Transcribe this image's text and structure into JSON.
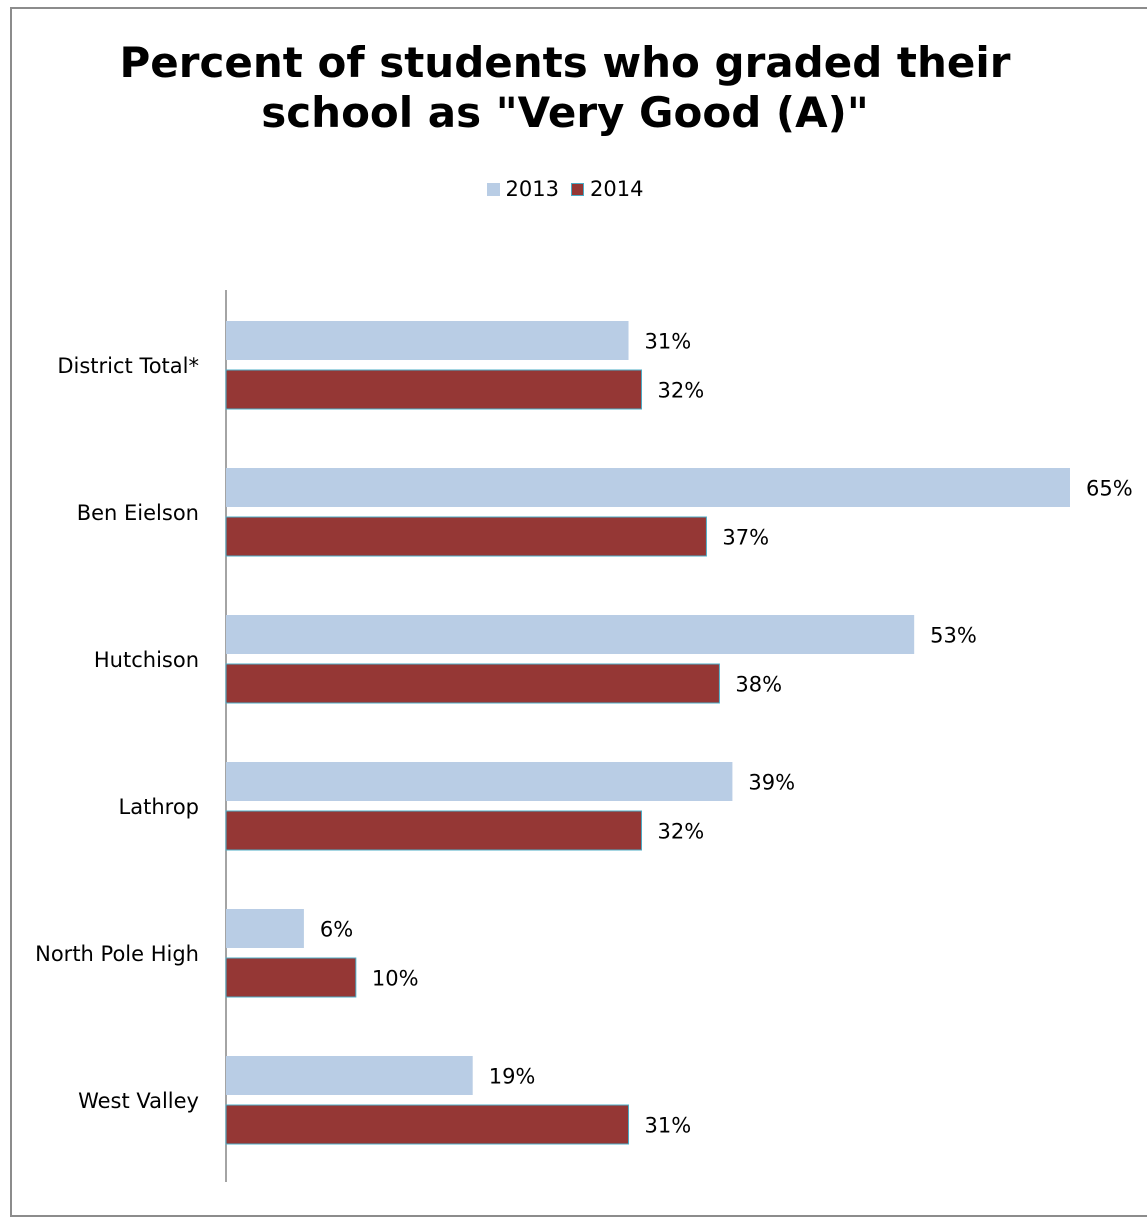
{
  "chart_data": {
    "type": "bar",
    "orientation": "horizontal",
    "title": "Percent of students who graded their\nschool as \"Very Good (A)\"",
    "categories": [
      "District Total*",
      "Ben Eielson",
      "Hutchison",
      "Lathrop",
      "North Pole High",
      "West Valley"
    ],
    "series": [
      {
        "name": "2013",
        "values": [
          31,
          65,
          53,
          39,
          6,
          19
        ],
        "labels": [
          "31%",
          "65%",
          "53%",
          "39%",
          "6%",
          "19%"
        ],
        "color": "#b9cde5"
      },
      {
        "name": "2014",
        "values": [
          32,
          37,
          38,
          32,
          10,
          31
        ],
        "labels": [
          "32%",
          "37%",
          "38%",
          "32%",
          "10%",
          "31%"
        ],
        "color": "#953735"
      }
    ],
    "xlim": [
      0,
      70
    ],
    "grid": false,
    "legend": "top-center"
  }
}
